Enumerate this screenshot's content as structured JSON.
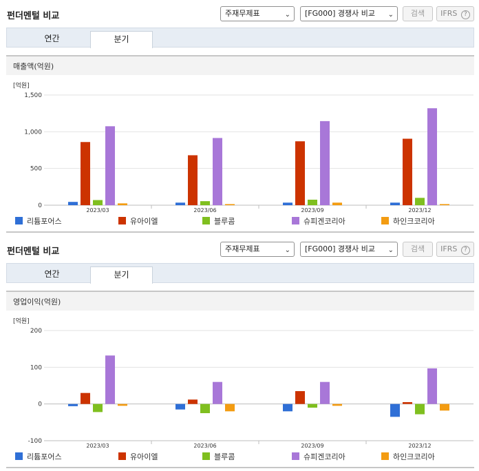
{
  "sections": [
    {
      "title": "펀더멘털 비교",
      "select_statement": "주재무제표",
      "select_compare": "[FG000] 경쟁사 비교",
      "search_label": "검색",
      "ifrs_label": "IFRS",
      "help_icon": "?",
      "tabs": [
        {
          "label": "연간"
        },
        {
          "label": "분기"
        }
      ],
      "metric_label": "매출액(억원)"
    },
    {
      "title": "펀더멘털 비교",
      "select_statement": "주재무제표",
      "select_compare": "[FG000] 경쟁사 비교",
      "search_label": "검색",
      "ifrs_label": "IFRS",
      "help_icon": "?",
      "tabs": [
        {
          "label": "연간"
        },
        {
          "label": "분기"
        }
      ],
      "metric_label": "영업이익(억원)"
    }
  ],
  "chart_data": [
    {
      "type": "bar",
      "unit_label": "[억원]",
      "categories": [
        "2023/03",
        "2023/06",
        "2023/09",
        "2023/12"
      ],
      "ylim": [
        0,
        1500
      ],
      "yticks": [
        0,
        500,
        1000,
        1500
      ],
      "ytick_labels": [
        "0",
        "500",
        "1,000",
        "1,500"
      ],
      "grid": true,
      "legend_position": "bottom",
      "series": [
        {
          "name": "리튬포어스",
          "color": "#2f6fd6",
          "values": [
            45,
            35,
            35,
            35
          ]
        },
        {
          "name": "유아이엘",
          "color": "#cc3300",
          "values": [
            860,
            680,
            870,
            905
          ]
        },
        {
          "name": "블루콤",
          "color": "#7fbf1f",
          "values": [
            70,
            55,
            75,
            100
          ]
        },
        {
          "name": "슈피겐코리아",
          "color": "#a877d8",
          "values": [
            1075,
            915,
            1145,
            1320
          ]
        },
        {
          "name": "하인크코리아",
          "color": "#f39c12",
          "values": [
            25,
            15,
            35,
            15
          ]
        }
      ]
    },
    {
      "type": "bar",
      "unit_label": "[억원]",
      "categories": [
        "2023/03",
        "2023/06",
        "2023/09",
        "2023/12"
      ],
      "ylim": [
        -100,
        200
      ],
      "yticks": [
        -100,
        0,
        100,
        200
      ],
      "ytick_labels": [
        "-100",
        "0",
        "100",
        "200"
      ],
      "grid": true,
      "legend_position": "bottom",
      "series": [
        {
          "name": "리튬포어스",
          "color": "#2f6fd6",
          "values": [
            -6,
            -15,
            -20,
            -35
          ]
        },
        {
          "name": "유아이엘",
          "color": "#cc3300",
          "values": [
            30,
            12,
            35,
            5
          ]
        },
        {
          "name": "블루콤",
          "color": "#7fbf1f",
          "values": [
            -22,
            -25,
            -10,
            -28
          ]
        },
        {
          "name": "슈피겐코리아",
          "color": "#a877d8",
          "values": [
            132,
            60,
            60,
            97
          ]
        },
        {
          "name": "하인크코리아",
          "color": "#f39c12",
          "values": [
            -5,
            -20,
            -5,
            -18
          ]
        }
      ]
    }
  ]
}
